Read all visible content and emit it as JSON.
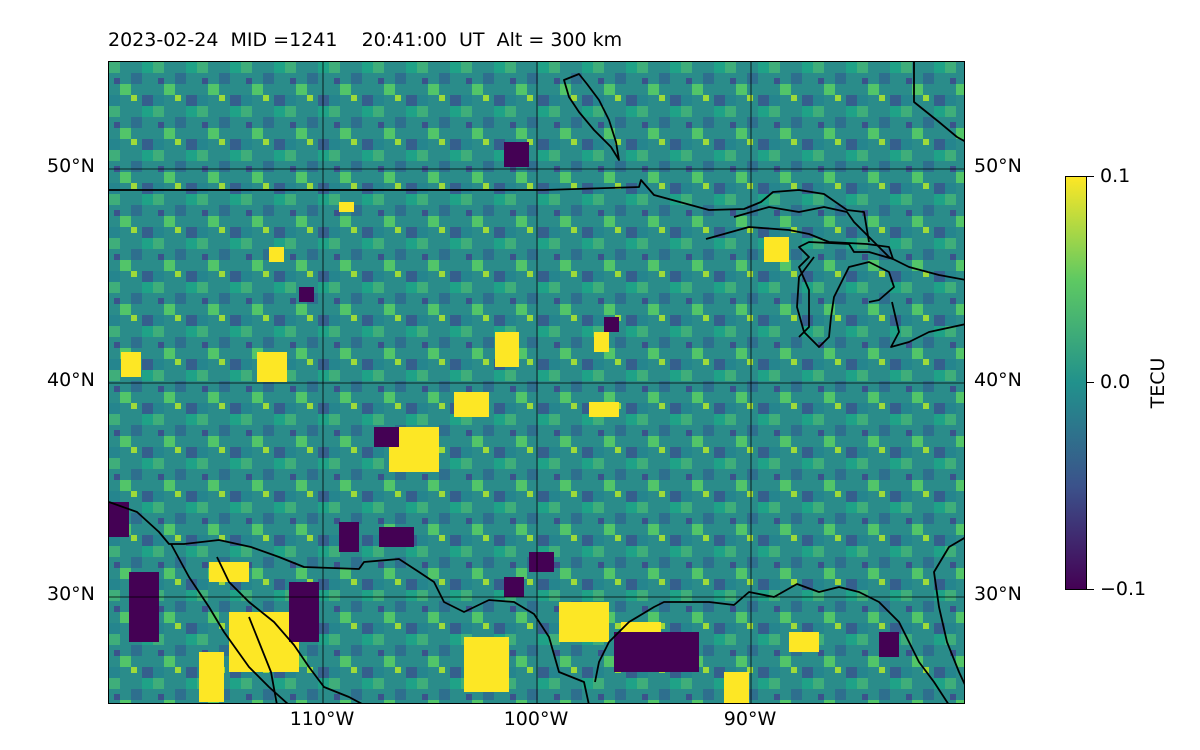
{
  "title": "2023-02-24  MID =1241    20:41:00  UT  Alt = 300 km",
  "map": {
    "lat_labels": [
      "50°N",
      "40°N",
      "30°N"
    ],
    "lon_labels": [
      "110°W",
      "100°W",
      "90°W"
    ],
    "field": "TEC perturbation (viridis colormap)",
    "colors": {
      "low": "#440154",
      "mid": "#21918c",
      "high": "#fde725",
      "coastline": "#000000",
      "grid": "#000000"
    }
  },
  "colorbar": {
    "label": "TECU",
    "ticks": [
      "0.1",
      "0.0",
      "−0.1"
    ],
    "max": 0.1,
    "min": -0.1
  }
}
